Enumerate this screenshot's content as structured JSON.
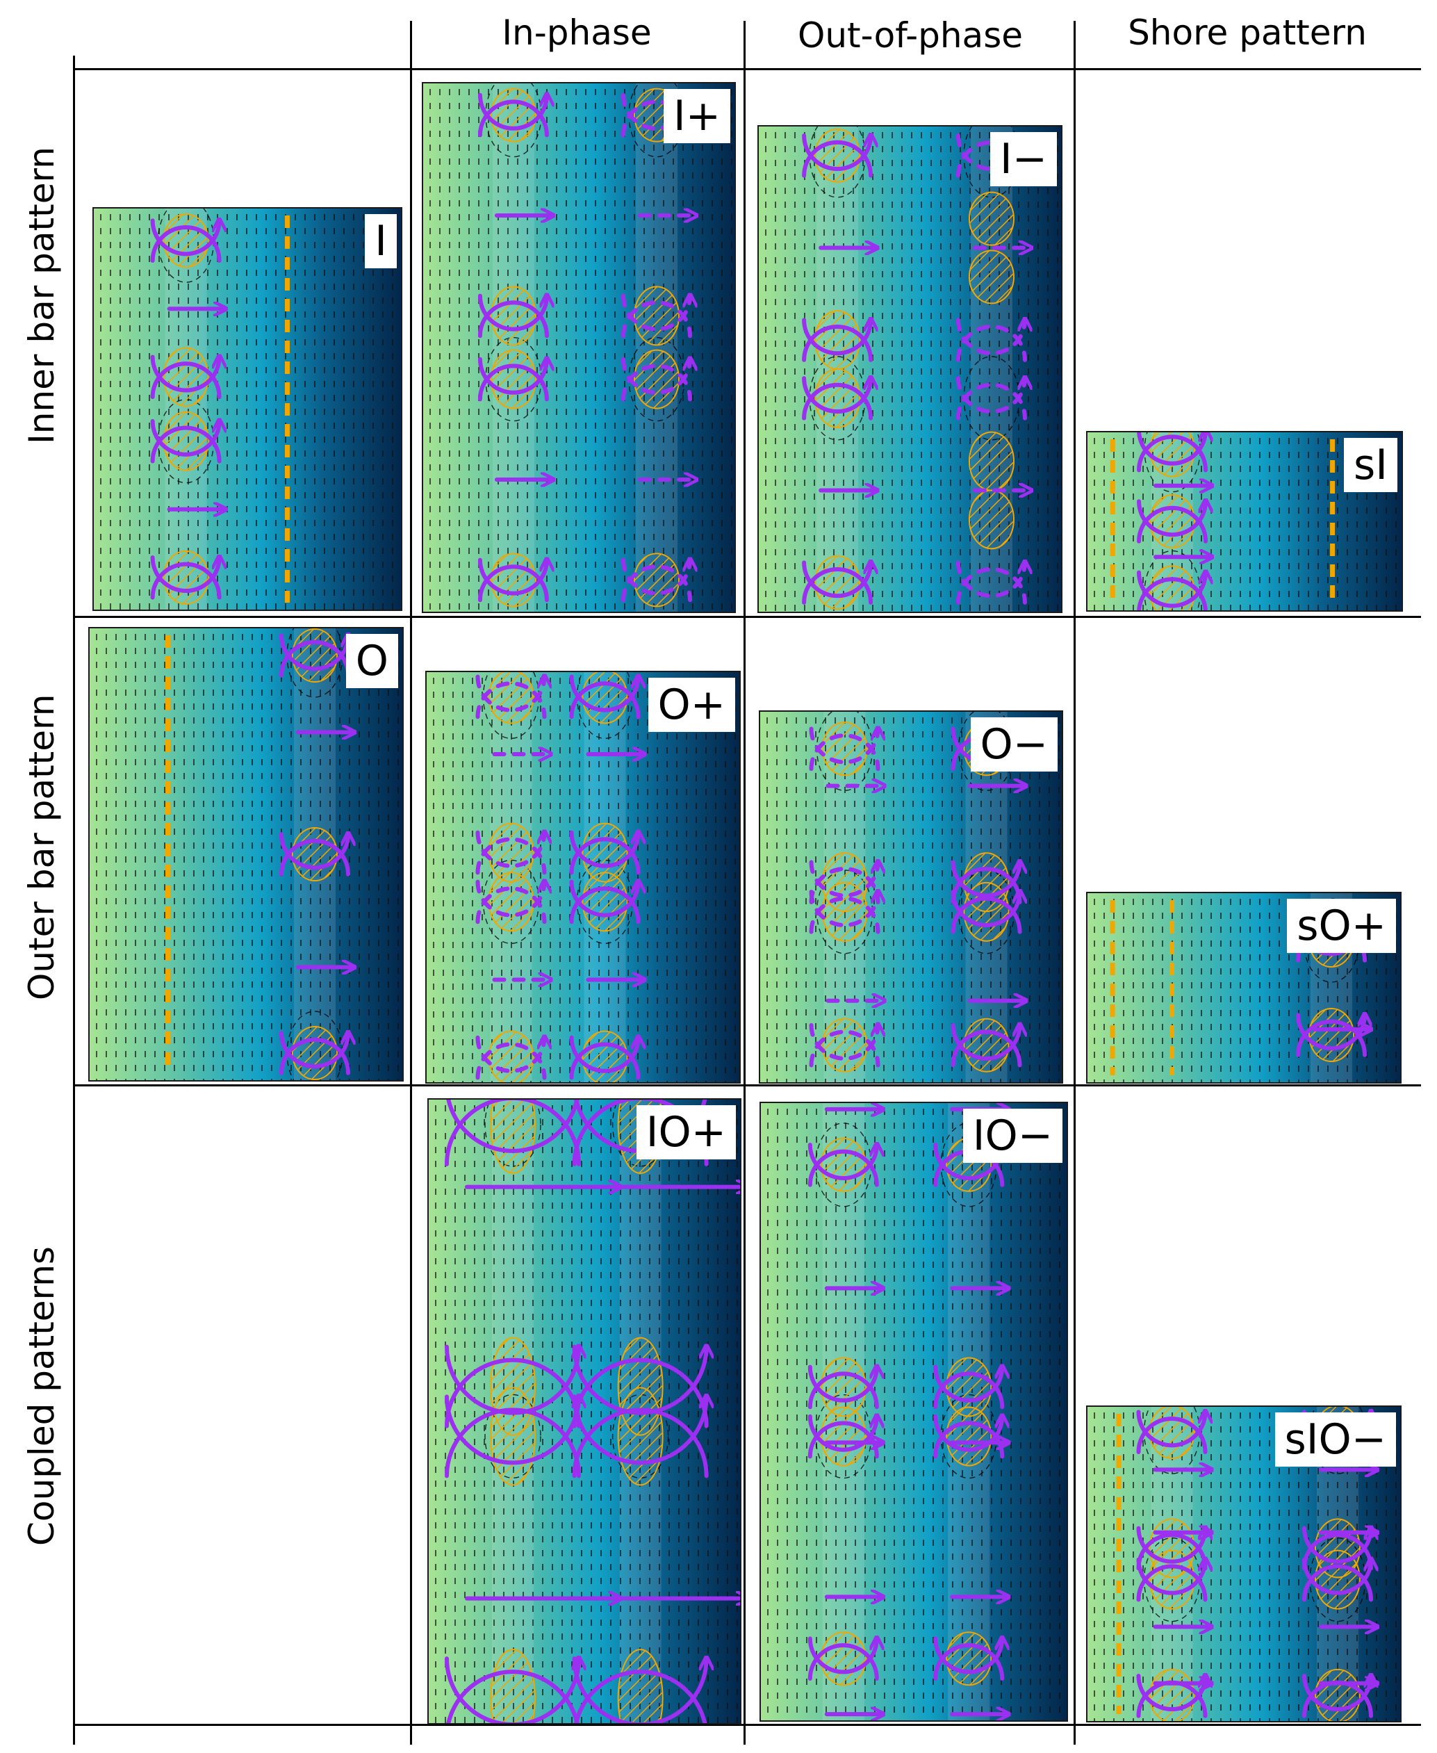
{
  "columns": [
    "In-phase",
    "Out-of-phase",
    "Shore pattern"
  ],
  "rows": [
    "Inner bar pattern",
    "Outer bar pattern",
    "Coupled patterns"
  ],
  "panels": {
    "I": {
      "label": "I"
    },
    "Iplus": {
      "label": "I+"
    },
    "Iminus": {
      "label": "I−"
    },
    "sI": {
      "label": "sI"
    },
    "O": {
      "label": "O"
    },
    "Oplus": {
      "label": "O+"
    },
    "Ominus": {
      "label": "O−"
    },
    "sOplus": {
      "label": "sO+"
    },
    "IOplus": {
      "label": "IO+"
    },
    "IOminus": {
      "label": "IO−"
    },
    "sIOminus": {
      "label": "sIO−"
    }
  },
  "colors": {
    "shallow": "#a6e493",
    "mid": "#12a0c6",
    "deep": "#03264a",
    "circulation": "#9b30f0",
    "bar_crest": "#f0a800",
    "contour": "#000000"
  }
}
